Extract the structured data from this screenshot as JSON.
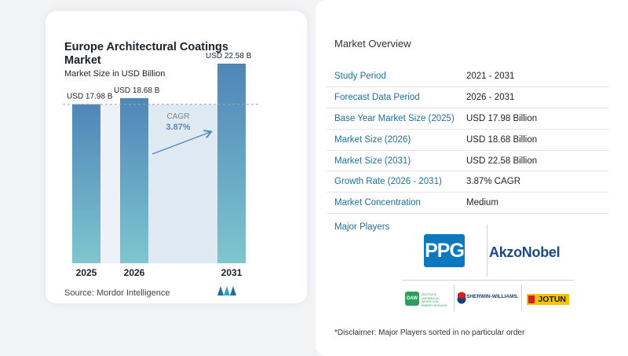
{
  "chart_data": {
    "type": "bar",
    "title": "Europe Architectural Coatings Market",
    "subtitle": "Market Size in USD Billion",
    "categories": [
      "2025",
      "2026",
      "2031"
    ],
    "values": [
      17.98,
      18.68,
      22.58
    ],
    "data_labels": [
      "USD 17.98 B",
      "USD 18.68 B",
      "USD 22.58 B"
    ],
    "annotation": {
      "label": "CAGR",
      "value": "3.87%"
    },
    "ylim": [
      0,
      24
    ],
    "colors": {
      "bar_top": "#4f86b8",
      "bar_bottom": "#7fc6cf",
      "band": "#dfe9f2",
      "arrow": "#4f86b8",
      "cagr": "#5b88b0",
      "ref_line": "#9aa6b0"
    }
  },
  "source": "Source:  Mordor Intelligence",
  "brand_logo_icon": "mordor-intelligence-logo-icon",
  "overview": {
    "title": "Market Overview",
    "rows": [
      {
        "label": "Study Period",
        "value": "2021 - 2031"
      },
      {
        "label": "Forecast Data Period",
        "value": "2026 - 2031"
      },
      {
        "label": "Base Year Market Size (2025)",
        "value": "USD 17.98 Billion"
      },
      {
        "label": "Market Size (2026)",
        "value": "USD 18.68 Billion"
      },
      {
        "label": "Market Size (2031)",
        "value": "USD 22.58 Billion"
      },
      {
        "label": "Growth Rate (2026 - 2031)",
        "value": "3.87% CAGR"
      },
      {
        "label": "Market Concentration",
        "value": "Medium"
      }
    ]
  },
  "major_players": {
    "title": "Major Players",
    "logos": {
      "ppg": "PPG",
      "akzonobel": "AkzoNobel",
      "daw": "DAW",
      "daw_tagline": "DEUTSCHE AMPHIBOLIN-WERKE VON ROBERT MURJAHN",
      "sherwin": "SHERWIN-WILLIAMS.",
      "jotun": "JOTUN"
    }
  },
  "disclaimer": "*Disclaimer: Major Players sorted in no particular order"
}
